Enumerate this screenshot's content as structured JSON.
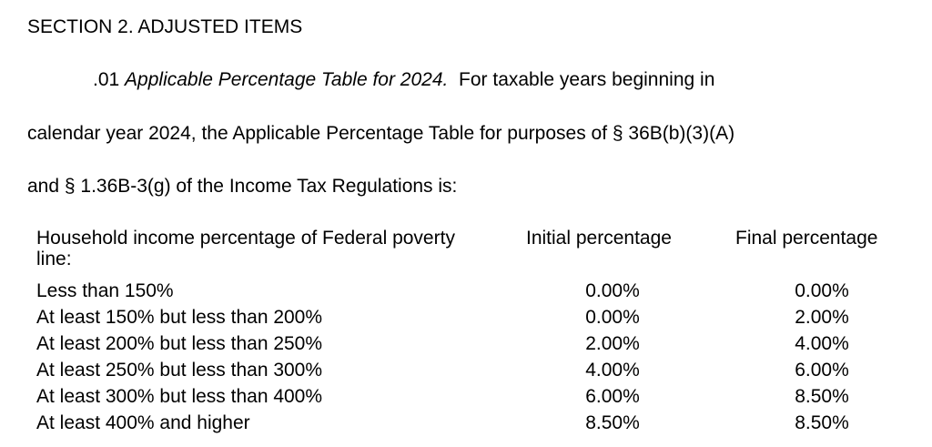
{
  "section_heading": "SECTION 2. ADJUSTED ITEMS",
  "paragraph": {
    "number": ".01",
    "title": "Applicable Percentage Table for 2024.",
    "line1_rest": "For taxable years beginning in",
    "line2": "calendar year 2024, the Applicable Percentage Table for purposes of § 36B(b)(3)(A)",
    "line3": "and § 1.36B-3(g) of the Income Tax Regulations is:"
  },
  "table": {
    "headers": {
      "label": "Household income percentage of Federal poverty line:",
      "initial": "Initial percentage",
      "final": "Final percentage"
    },
    "rows": [
      {
        "label": "Less than 150%",
        "initial": "0.00%",
        "final": "0.00%"
      },
      {
        "label": "At least 150% but less than 200%",
        "initial": "0.00%",
        "final": "2.00%"
      },
      {
        "label": "At least 200% but less than 250%",
        "initial": "2.00%",
        "final": "4.00%"
      },
      {
        "label": "At least 250% but less than 300%",
        "initial": "4.00%",
        "final": "6.00%"
      },
      {
        "label": "At least 300% but less than 400%",
        "initial": "6.00%",
        "final": "8.50%"
      },
      {
        "label": "At least 400% and higher",
        "initial": "8.50%",
        "final": "8.50%"
      }
    ]
  }
}
